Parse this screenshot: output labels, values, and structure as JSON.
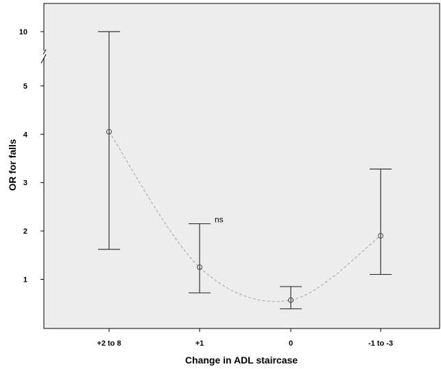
{
  "chart_data": {
    "type": "scatter",
    "xlabel": "Change in ADL staircase",
    "ylabel": "OR for falls",
    "categories": [
      "+2 to 8",
      "+1",
      "0",
      "-1 to -3"
    ],
    "y_ticks": [
      1,
      2,
      3,
      4,
      5,
      10
    ],
    "y_axis_break": "between 5 and 10",
    "grid": false,
    "series": [
      {
        "values": [
          4.05,
          1.25,
          0.57,
          1.9
        ],
        "lower": [
          1.62,
          0.72,
          0.39,
          1.1
        ],
        "upper": [
          10,
          2.15,
          0.85,
          3.28
        ]
      }
    ],
    "annotations": [
      {
        "category": "+1",
        "text": "ns"
      }
    ],
    "trend_line": "dashed smooth curve through point estimates",
    "colors": {
      "plot_background": "#ededed",
      "error_bar": "#333333",
      "trend_line": "#a0a0a0",
      "point_stroke": "#444444"
    }
  }
}
